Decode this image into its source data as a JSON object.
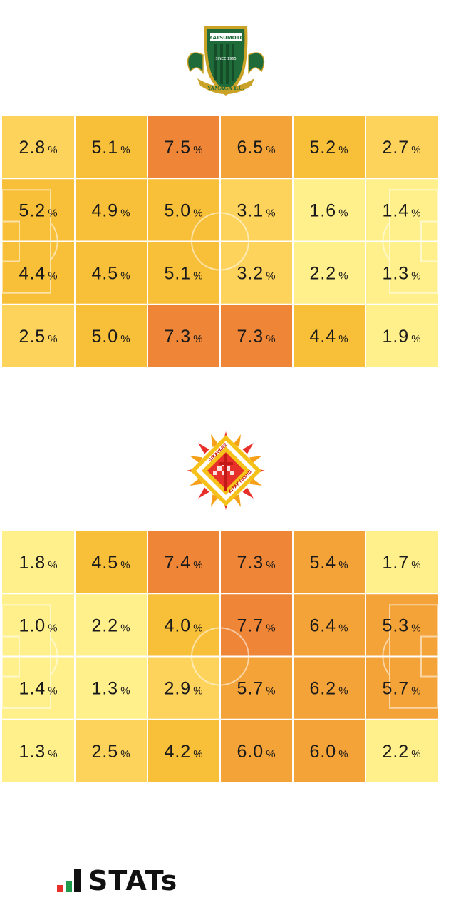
{
  "teams": [
    {
      "crest_icon": "matsumoto-yamaga-crest-icon",
      "crest_text": {
        "top": "MATSUMOTO",
        "bottom": "YAMAGA F.C.",
        "since": "SINCE 1965"
      },
      "colors": {
        "primary": "#1f6b3a",
        "secondary": "#c9a227"
      }
    },
    {
      "crest_icon": "giravanz-kitakyushu-crest-icon",
      "crest_text": {
        "top": "GIRAVANZ",
        "bottom": "KITAKYUSHU"
      },
      "colors": {
        "primary": "#e8302a",
        "secondary": "#f6c21a"
      }
    }
  ],
  "chart_data": [
    {
      "type": "heatmap",
      "unit": "%",
      "rows": 4,
      "cols": 6,
      "values": [
        [
          2.8,
          5.1,
          7.5,
          6.5,
          5.2,
          2.7
        ],
        [
          5.2,
          4.9,
          5.0,
          3.1,
          1.6,
          1.4
        ],
        [
          4.4,
          4.5,
          5.1,
          3.2,
          2.2,
          1.3
        ],
        [
          2.5,
          5.0,
          7.3,
          7.3,
          4.4,
          1.9
        ]
      ],
      "labels": [
        [
          "2.8",
          "5.1",
          "7.5",
          "6.5",
          "5.2",
          "2.7"
        ],
        [
          "5.2",
          "4.9",
          "5.0",
          "3.1",
          "1.6",
          "1.4"
        ],
        [
          "4.4",
          "4.5",
          "5.1",
          "3.2",
          "2.2",
          "1.3"
        ],
        [
          "2.5",
          "5.0",
          "7.3",
          "7.3",
          "4.4",
          "1.9"
        ]
      ]
    },
    {
      "type": "heatmap",
      "unit": "%",
      "rows": 4,
      "cols": 6,
      "values": [
        [
          1.8,
          4.5,
          7.4,
          7.3,
          5.4,
          1.7
        ],
        [
          1.0,
          2.2,
          4.0,
          7.7,
          6.4,
          5.3
        ],
        [
          1.4,
          1.3,
          2.9,
          5.7,
          6.2,
          5.7
        ],
        [
          1.3,
          2.5,
          4.2,
          6.0,
          6.0,
          2.2
        ]
      ],
      "labels": [
        [
          "1.8",
          "4.5",
          "7.4",
          "7.3",
          "5.4",
          "1.7"
        ],
        [
          "1.0",
          "2.2",
          "4.0",
          "7.7",
          "6.4",
          "5.3"
        ],
        [
          "1.4",
          "1.3",
          "2.9",
          "5.7",
          "6.2",
          "5.7"
        ],
        [
          "1.3",
          "2.5",
          "4.2",
          "6.0",
          "6.0",
          "2.2"
        ]
      ]
    }
  ],
  "color_scale": {
    "stops": [
      {
        "min": 0,
        "color": "#fff08c"
      },
      {
        "min": 2.5,
        "color": "#fdd35c"
      },
      {
        "min": 4.0,
        "color": "#f8bf39"
      },
      {
        "min": 5.25,
        "color": "#f4a338"
      },
      {
        "min": 7.0,
        "color": "#ee8537"
      }
    ]
  },
  "logo": {
    "text": "STATs",
    "icon": "stats-bars-icon"
  }
}
